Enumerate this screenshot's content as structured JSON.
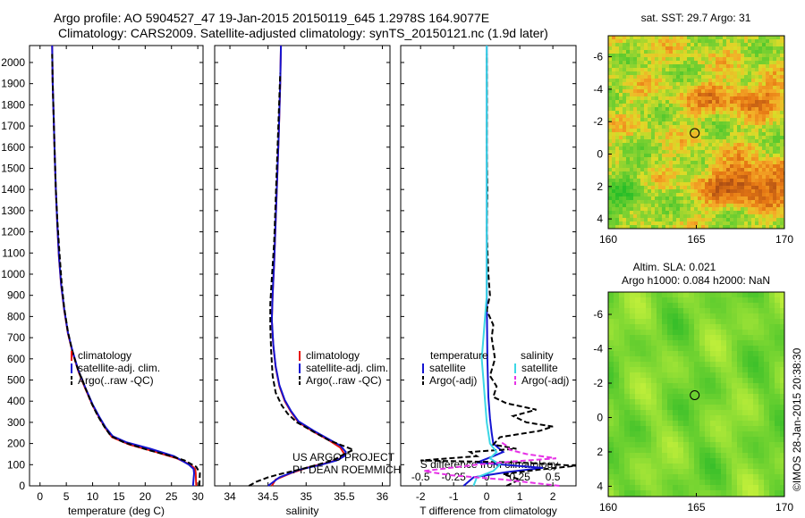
{
  "title": {
    "line1": "Argo profile: AO 5904527_47 19-Jan-2015 20150119_645 1.2978S 164.9077E",
    "line2": "Climatology: CARS2009. Satellite-adjusted climatology: synTS_20150121.nc (1.9d later)"
  },
  "credit": {
    "line1": "US ARGO PROJECT",
    "line2": "PI: DEAN ROEMMICH",
    "stamp": "©IMOS 28-Jan-2015 20:38:30"
  },
  "colors": {
    "climatology": "#e8140c",
    "satellite": "#1414d2",
    "argo": "#000000",
    "satellite_diff": "#3cd7e6",
    "argo_s_diff": "#e632e6"
  },
  "chart_data": [
    {
      "type": "line",
      "id": "temperature",
      "xlabel": "temperature (deg C)",
      "xlim": [
        -2,
        31
      ],
      "xticks": [
        0,
        5,
        10,
        15,
        20,
        25,
        30
      ],
      "ylim": [
        2080,
        0
      ],
      "yticks": [
        0,
        100,
        200,
        300,
        400,
        500,
        600,
        700,
        800,
        900,
        1000,
        1100,
        1200,
        1300,
        1400,
        1500,
        1600,
        1700,
        1800,
        1900,
        2000
      ],
      "legend": [
        "climatology",
        "satellite-adj. clim.",
        "Argo(..raw -QC)"
      ],
      "series": [
        {
          "key": "climatology",
          "style": "solid",
          "points": [
            [
              29.7,
              0
            ],
            [
              29.6,
              60
            ],
            [
              29.5,
              80
            ],
            [
              28.6,
              100
            ],
            [
              26,
              130
            ],
            [
              22,
              160
            ],
            [
              17,
              195
            ],
            [
              13.7,
              230
            ],
            [
              12.5,
              270
            ],
            [
              11.3,
              320
            ],
            [
              10,
              380
            ],
            [
              8.6,
              460
            ],
            [
              7.3,
              540
            ],
            [
              6.2,
              630
            ],
            [
              5.3,
              720
            ],
            [
              4.6,
              830
            ],
            [
              4,
              950
            ],
            [
              3.6,
              1080
            ],
            [
              3.3,
              1220
            ],
            [
              3,
              1400
            ],
            [
              2.8,
              1560
            ],
            [
              2.6,
              1740
            ],
            [
              2.4,
              1900
            ],
            [
              2.3,
              2080
            ]
          ]
        },
        {
          "key": "satellite",
          "style": "solid",
          "points": [
            [
              29.1,
              0
            ],
            [
              29.3,
              60
            ],
            [
              29.2,
              80
            ],
            [
              28.3,
              100
            ],
            [
              25.5,
              140
            ],
            [
              21,
              175
            ],
            [
              16.5,
              205
            ],
            [
              13.8,
              235
            ],
            [
              12.5,
              275
            ],
            [
              11.3,
              325
            ],
            [
              10,
              385
            ],
            [
              8.6,
              465
            ],
            [
              7.3,
              545
            ],
            [
              6.2,
              635
            ],
            [
              5.3,
              725
            ],
            [
              4.6,
              835
            ],
            [
              4,
              955
            ],
            [
              3.6,
              1085
            ],
            [
              3.3,
              1225
            ],
            [
              3,
              1405
            ],
            [
              2.8,
              1565
            ],
            [
              2.6,
              1745
            ],
            [
              2.4,
              1905
            ],
            [
              2.3,
              2080
            ]
          ]
        },
        {
          "key": "argo",
          "style": "dashed",
          "points": [
            [
              30.3,
              0
            ],
            [
              30.4,
              60
            ],
            [
              29.7,
              90
            ],
            [
              27.5,
              120
            ],
            [
              25,
              140
            ],
            [
              20.5,
              170
            ],
            [
              16,
              205
            ],
            [
              13.5,
              235
            ],
            [
              12.2,
              280
            ],
            [
              11,
              330
            ],
            [
              9.8,
              390
            ],
            [
              8.5,
              470
            ],
            [
              7.2,
              550
            ],
            [
              6.1,
              640
            ],
            [
              5.3,
              730
            ],
            [
              4.6,
              840
            ],
            [
              4.1,
              960
            ],
            [
              3.7,
              1100
            ],
            [
              3.3,
              1250
            ],
            [
              3,
              1400
            ],
            [
              2.8,
              1560
            ],
            [
              2.6,
              1740
            ],
            [
              2.4,
              1900
            ],
            [
              2.3,
              2040
            ]
          ]
        }
      ]
    },
    {
      "type": "line",
      "id": "salinity",
      "xlabel": "salinity",
      "xlim": [
        33.8,
        36.1
      ],
      "xticks": [
        34,
        34.5,
        35,
        35.5,
        36
      ],
      "ylim": [
        2080,
        0
      ],
      "legend": [
        "climatology",
        "satellite-adj. clim.",
        "Argo(..raw -QC)"
      ],
      "series": [
        {
          "key": "climatology",
          "style": "solid",
          "points": [
            [
              34.55,
              0
            ],
            [
              34.6,
              30
            ],
            [
              34.8,
              60
            ],
            [
              35.05,
              90
            ],
            [
              35.3,
              110
            ],
            [
              35.45,
              130
            ],
            [
              35.5,
              150
            ],
            [
              35.45,
              180
            ],
            [
              35.3,
              215
            ],
            [
              35.1,
              255
            ],
            [
              34.9,
              300
            ],
            [
              34.8,
              350
            ],
            [
              34.72,
              400
            ],
            [
              34.65,
              470
            ],
            [
              34.6,
              560
            ],
            [
              34.57,
              660
            ],
            [
              34.55,
              780
            ],
            [
              34.56,
              900
            ],
            [
              34.58,
              1050
            ],
            [
              34.6,
              1250
            ],
            [
              34.62,
              1450
            ],
            [
              34.64,
              1650
            ],
            [
              34.66,
              1900
            ],
            [
              34.67,
              2080
            ]
          ]
        },
        {
          "key": "satellite",
          "style": "solid",
          "points": [
            [
              34.5,
              0
            ],
            [
              34.65,
              40
            ],
            [
              34.9,
              75
            ],
            [
              35.2,
              100
            ],
            [
              35.4,
              120
            ],
            [
              35.5,
              140
            ],
            [
              35.52,
              160
            ],
            [
              35.45,
              190
            ],
            [
              35.3,
              220
            ],
            [
              35.1,
              260
            ],
            [
              34.9,
              305
            ],
            [
              34.8,
              355
            ],
            [
              34.72,
              405
            ],
            [
              34.65,
              475
            ],
            [
              34.6,
              565
            ],
            [
              34.57,
              665
            ],
            [
              34.55,
              785
            ],
            [
              34.56,
              905
            ],
            [
              34.58,
              1055
            ],
            [
              34.6,
              1255
            ],
            [
              34.62,
              1455
            ],
            [
              34.64,
              1655
            ],
            [
              34.66,
              1905
            ],
            [
              34.67,
              2080
            ]
          ]
        },
        {
          "key": "argo",
          "style": "dashed",
          "points": [
            [
              34.25,
              0
            ],
            [
              34.35,
              20
            ],
            [
              34.5,
              40
            ],
            [
              34.65,
              55
            ],
            [
              34.95,
              80
            ],
            [
              35.15,
              100
            ],
            [
              35.35,
              120
            ],
            [
              35.5,
              150
            ],
            [
              35.62,
              170
            ],
            [
              35.48,
              190
            ],
            [
              35.3,
              215
            ],
            [
              35.1,
              255
            ],
            [
              34.88,
              300
            ],
            [
              34.76,
              340
            ],
            [
              34.68,
              380
            ],
            [
              34.6,
              440
            ],
            [
              34.56,
              520
            ],
            [
              34.54,
              640
            ],
            [
              34.53,
              760
            ],
            [
              34.53,
              860
            ],
            [
              34.55,
              980
            ],
            [
              34.58,
              1150
            ],
            [
              34.6,
              1350
            ],
            [
              34.62,
              1550
            ],
            [
              34.64,
              1750
            ],
            [
              34.66,
              1950
            ]
          ]
        }
      ]
    },
    {
      "type": "line",
      "id": "difference",
      "xlabel": "T difference from climatology",
      "xlabel_top": "S difference from climatology",
      "xlim": [
        -2.6,
        2.7
      ],
      "xticks": [
        -2,
        -1,
        0,
        1,
        2
      ],
      "s_xticks": [
        -0.5,
        -0.25,
        0,
        0.25,
        0.5
      ],
      "s_xtick_labels": [
        "-0.5",
        "-0.25",
        "0",
        "0.25",
        "0.5"
      ],
      "ylim": [
        2080,
        0
      ],
      "legend_headers": [
        "temperature",
        "salinity"
      ],
      "legend": [
        "satellite",
        "Argo(-adj)",
        "satellite",
        "Argo(-adj)"
      ],
      "series": [
        {
          "key": "satellite",
          "style": "solid",
          "points": [
            [
              -0.7,
              0
            ],
            [
              -0.4,
              40
            ],
            [
              0.6,
              65
            ],
            [
              1.7,
              85
            ],
            [
              -0.3,
              110
            ],
            [
              0.2,
              140
            ],
            [
              0.5,
              160
            ],
            [
              0.2,
              200
            ],
            [
              0.15,
              250
            ],
            [
              0.1,
              320
            ],
            [
              0.05,
              420
            ],
            [
              0.02,
              600
            ],
            [
              0,
              900
            ],
            [
              0,
              1500
            ],
            [
              0,
              2080
            ]
          ]
        },
        {
          "key": "argo",
          "style": "dashed",
          "points": [
            [
              0.6,
              0
            ],
            [
              1.0,
              30
            ],
            [
              0.5,
              55
            ],
            [
              1.5,
              75
            ],
            [
              2.7,
              95
            ],
            [
              1.0,
              110
            ],
            [
              -2.0,
              120
            ],
            [
              -0.3,
              140
            ],
            [
              -0.5,
              160
            ],
            [
              0.9,
              175
            ],
            [
              0.2,
              195
            ],
            [
              0.4,
              230
            ],
            [
              1.6,
              260
            ],
            [
              2.0,
              280
            ],
            [
              1.2,
              300
            ],
            [
              0.8,
              330
            ],
            [
              1.5,
              360
            ],
            [
              0.6,
              390
            ],
            [
              0.2,
              420
            ],
            [
              0.3,
              470
            ],
            [
              0.1,
              520
            ],
            [
              0.25,
              600
            ],
            [
              0.15,
              700
            ],
            [
              0.2,
              760
            ],
            [
              0.0,
              830
            ],
            [
              0.1,
              900
            ],
            [
              0.05,
              1000
            ],
            [
              0.0,
              1200
            ],
            [
              0.02,
              1400
            ],
            [
              0.0,
              1600
            ],
            [
              0.01,
              1800
            ],
            [
              0.0,
              2040
            ]
          ]
        },
        {
          "key": "satellite_diff",
          "style": "solid",
          "points": [
            [
              -0.4,
              0
            ],
            [
              -0.3,
              40
            ],
            [
              0.2,
              70
            ],
            [
              0.4,
              100
            ],
            [
              0.1,
              130
            ],
            [
              0.3,
              160
            ],
            [
              0.1,
              200
            ],
            [
              0.05,
              250
            ],
            [
              0.0,
              300
            ],
            [
              -0.05,
              400
            ],
            [
              -0.1,
              500
            ],
            [
              -0.15,
              600
            ],
            [
              -0.1,
              700
            ],
            [
              -0.05,
              800
            ],
            [
              0,
              900
            ],
            [
              0,
              1100
            ],
            [
              0,
              1500
            ],
            [
              0,
              2080
            ]
          ]
        },
        {
          "key": "argo_s_diff",
          "style": "dashed",
          "points": [
            [
              2.2,
              0
            ],
            [
              0.5,
              30
            ],
            [
              -1.1,
              50
            ],
            [
              -1.9,
              70
            ],
            [
              -0.3,
              100
            ],
            [
              0.8,
              115
            ],
            [
              2.1,
              130
            ],
            [
              1.2,
              150
            ],
            [
              0.7,
              170
            ],
            [
              0.6,
              190
            ],
            [
              0.45,
              205
            ]
          ]
        }
      ]
    },
    {
      "type": "heatmap",
      "id": "sst-map",
      "title": "sat. SST: 29.7  Argo: 31",
      "xlim": [
        160,
        170
      ],
      "ylim": [
        -7.3,
        4.6
      ],
      "xticks": [
        160,
        165,
        170
      ],
      "yticks": [
        -6,
        -4,
        -2,
        0,
        2,
        4
      ],
      "marker": {
        "lon": 164.9077,
        "lat": -1.2978
      }
    },
    {
      "type": "heatmap",
      "id": "sla-map",
      "title_line1": "Altim. SLA: 0.021",
      "title_line2": "Argo h1000: 0.084 h2000: NaN",
      "xlim": [
        160,
        170
      ],
      "ylim": [
        -7.3,
        4.6
      ],
      "xticks": [
        160,
        165,
        170
      ],
      "yticks": [
        -6,
        -4,
        -2,
        0,
        2,
        4
      ],
      "marker": {
        "lon": 164.9077,
        "lat": -1.2978
      }
    }
  ]
}
